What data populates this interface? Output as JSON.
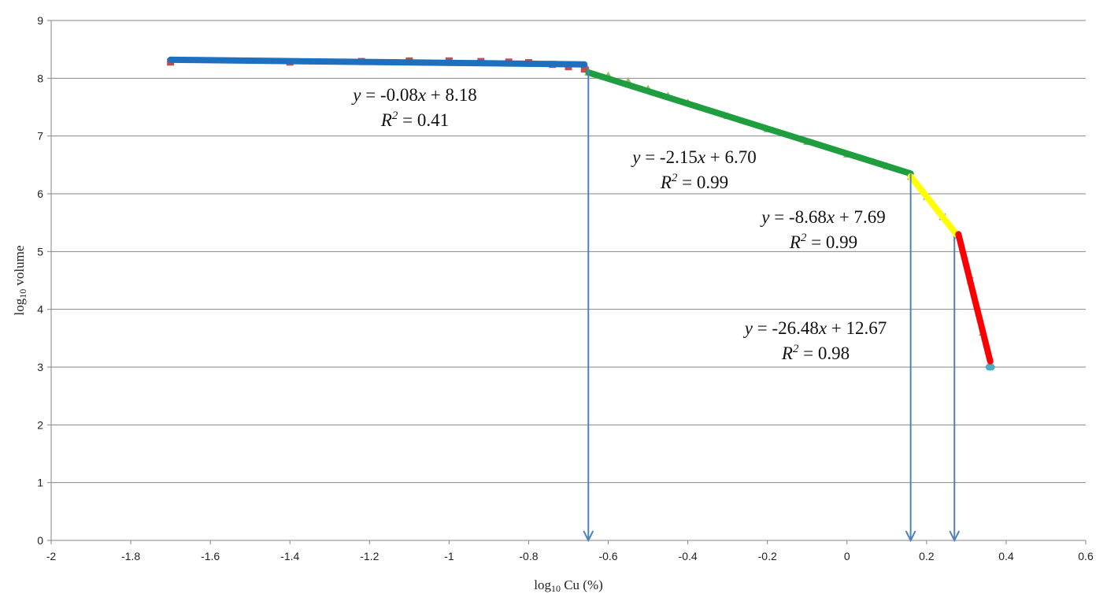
{
  "chart_data": {
    "type": "scatter",
    "xlabel": "log10 Cu (%)",
    "ylabel": "log10 volume",
    "xlim": [
      -2,
      0.6
    ],
    "ylim": [
      0,
      9
    ],
    "x_ticks": [
      "-2",
      "-1.8",
      "-1.6",
      "-1.4",
      "-1.2",
      "-1",
      "-0.8",
      "-0.6",
      "-0.4",
      "-0.2",
      "0",
      "0.2",
      "0.4",
      "0.6"
    ],
    "y_ticks": [
      "0",
      "1",
      "2",
      "3",
      "4",
      "5",
      "6",
      "7",
      "8",
      "9"
    ],
    "grid": "horizontal",
    "series": [
      {
        "color": "#1f6fbf",
        "marker": "square",
        "marker_color": "#c0504d",
        "points": [
          [
            -1.7,
            8.28
          ],
          [
            -1.4,
            8.28
          ],
          [
            -1.22,
            8.29
          ],
          [
            -1.1,
            8.3
          ],
          [
            -1.0,
            8.3
          ],
          [
            -0.92,
            8.29
          ],
          [
            -0.85,
            8.28
          ],
          [
            -0.8,
            8.27
          ],
          [
            -0.74,
            8.24
          ],
          [
            -0.7,
            8.2
          ],
          [
            -0.66,
            8.16
          ]
        ],
        "fit": {
          "x": [
            -1.7,
            -0.66
          ],
          "y": [
            8.32,
            8.24
          ]
        }
      },
      {
        "color": "#1e9e3e",
        "marker": "triangle",
        "marker_color": "#9bbb59",
        "points": [
          [
            -0.65,
            8.1
          ],
          [
            -0.6,
            8.05
          ],
          [
            -0.55,
            7.95
          ],
          [
            -0.5,
            7.82
          ],
          [
            -0.45,
            7.7
          ],
          [
            -0.4,
            7.58
          ],
          [
            -0.3,
            7.35
          ],
          [
            -0.2,
            7.12
          ],
          [
            -0.1,
            6.9
          ],
          [
            0.0,
            6.68
          ],
          [
            0.1,
            6.48
          ],
          [
            0.16,
            6.35
          ]
        ],
        "fit": {
          "x": [
            -0.65,
            0.16
          ],
          "y": [
            8.1,
            6.35
          ]
        }
      },
      {
        "color": "#ffff00",
        "marker": "x",
        "marker_color": "#8aa6cf",
        "points": [
          [
            0.16,
            6.3
          ],
          [
            0.2,
            5.95
          ],
          [
            0.24,
            5.6
          ],
          [
            0.275,
            5.3
          ]
        ],
        "fit": {
          "x": [
            0.16,
            0.275
          ],
          "y": [
            6.3,
            5.3
          ]
        }
      },
      {
        "color": "#ff0000",
        "marker": "x",
        "marker_color": "#8aa6cf",
        "points": [
          [
            0.275,
            5.25
          ],
          [
            0.31,
            4.5
          ],
          [
            0.34,
            3.6
          ],
          [
            0.36,
            3.0
          ]
        ],
        "fit": {
          "x": [
            0.28,
            0.36
          ],
          "y": [
            5.3,
            3.1
          ]
        }
      }
    ],
    "end_point": {
      "x": 0.36,
      "y": 3.0,
      "color": "#4bacc6"
    },
    "breakpoints": [
      -0.65,
      0.16,
      0.27
    ],
    "breakpoint_tops": [
      8.2,
      6.35,
      5.25
    ],
    "breakpoint_color": "#4f81bd",
    "annotations": [
      {
        "line1": {
          "v": "y",
          "eq": " = -0.08",
          "x": "x",
          "rest": " + 8.18"
        },
        "line2": {
          "r": "R",
          "sup": "2",
          "val": " = 0.41"
        }
      },
      {
        "line1": {
          "v": "y",
          "eq": " = -2.15",
          "x": "x",
          "rest": " + 6.70"
        },
        "line2": {
          "r": "R",
          "sup": "2",
          "val": " = 0.99"
        }
      },
      {
        "line1": {
          "v": "y",
          "eq": " = -8.68",
          "x": "x",
          "rest": " + 7.69"
        },
        "line2": {
          "r": "R",
          "sup": "2",
          "val": " = 0.99"
        }
      },
      {
        "line1": {
          "v": "y",
          "eq": " = -26.48",
          "x": "x",
          "rest": " + 12.67"
        },
        "line2": {
          "r": "R",
          "sup": "2",
          "val": " = 0.98"
        }
      }
    ]
  }
}
